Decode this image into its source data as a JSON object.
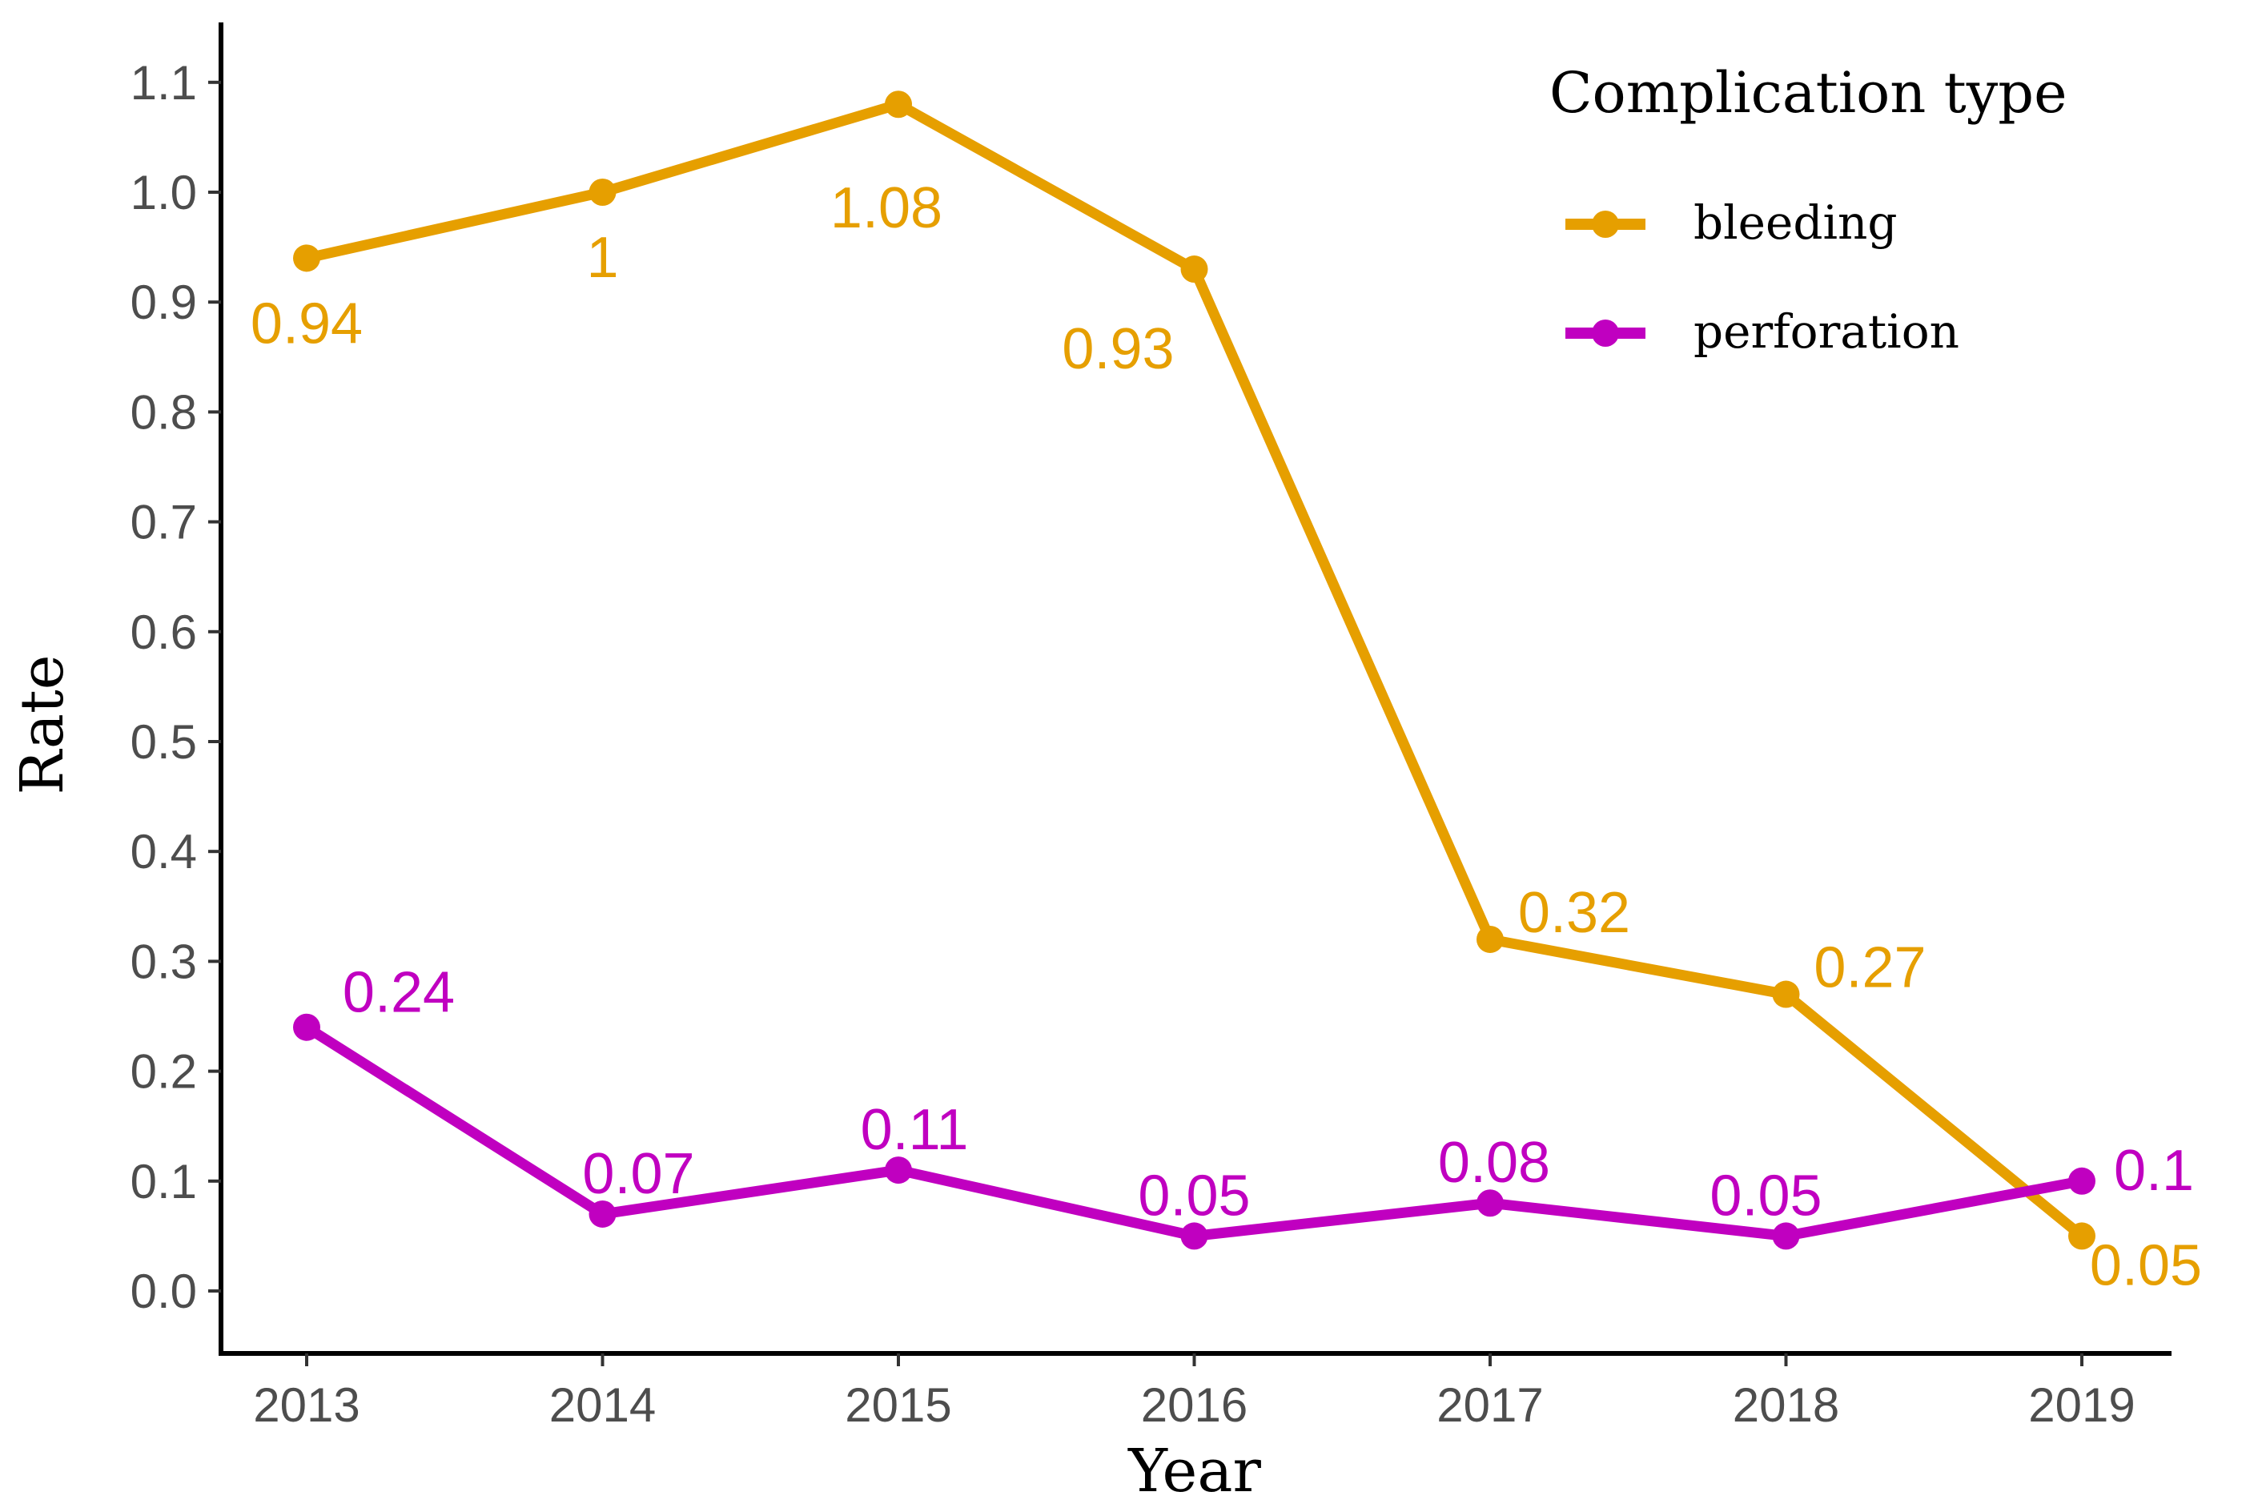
{
  "chart_data": {
    "type": "line",
    "xlabel": "Year",
    "ylabel": "Rate",
    "x": [
      2013,
      2014,
      2015,
      2016,
      2017,
      2018,
      2019
    ],
    "x_tick_labels": [
      "2013",
      "2014",
      "2015",
      "2016",
      "2017",
      "2018",
      "2019"
    ],
    "ylim": [
      -0.05,
      1.15
    ],
    "y_ticks": [
      0.0,
      0.1,
      0.2,
      0.3,
      0.4,
      0.5,
      0.6,
      0.7,
      0.8,
      0.9,
      1.0,
      1.1
    ],
    "y_tick_labels": [
      "0.0",
      "0.1",
      "0.2",
      "0.3",
      "0.4",
      "0.5",
      "0.6",
      "0.7",
      "0.8",
      "0.9",
      "1.0",
      "1.1"
    ],
    "grid": false,
    "legend": {
      "title": "Complication type",
      "placement": "top-right"
    },
    "series": [
      {
        "name": "bleeding",
        "color": "#E69F00",
        "values": [
          0.94,
          1.0,
          1.08,
          0.93,
          0.32,
          0.27,
          0.05
        ],
        "labels": [
          "0.94",
          "1",
          "1.08",
          "0.93",
          "0.32",
          "0.27",
          "0.05"
        ]
      },
      {
        "name": "perforation",
        "color": "#C000C0",
        "values": [
          0.24,
          0.07,
          0.11,
          0.05,
          0.08,
          0.05,
          0.1
        ],
        "labels": [
          "0.24",
          "0.07",
          "0.11",
          "0.05",
          "0.08",
          "0.05",
          "0.1"
        ]
      }
    ]
  }
}
